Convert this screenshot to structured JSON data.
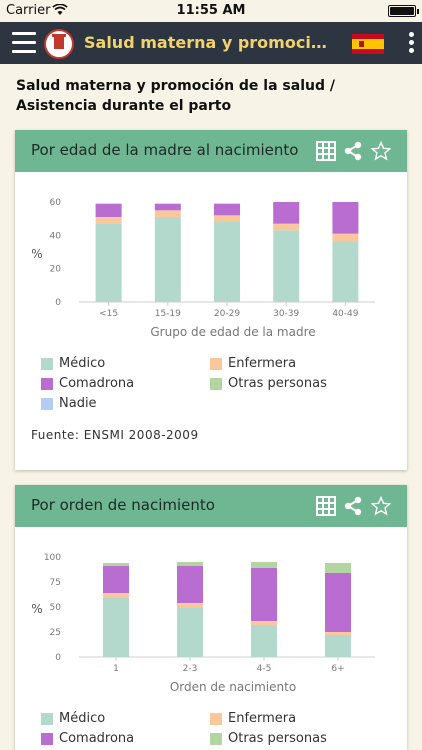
{
  "status_bar": {
    "carrier": "Carrier",
    "time": "11:55 AM"
  },
  "app_bar": {
    "title": "Salud materna y promoción de la salud",
    "language_flag": "spain-flag-icon"
  },
  "page": {
    "heading": "Salud materna y promoción de la salud / Asistencia durante el parto"
  },
  "colors": {
    "medico": "#b3d9cc",
    "enfermera": "#f9c79c",
    "comadrona": "#b96dd1",
    "otras": "#b3d5a2",
    "nadie": "#b5cdf3",
    "header": "#6fb692",
    "appbar": "#2c3540",
    "title_accent": "#f0d36a"
  },
  "legend_labels": {
    "medico": "Médico",
    "enfermera": "Enfermera",
    "comadrona": "Comadrona",
    "otras": "Otras personas",
    "nadie": "Nadie"
  },
  "cards": [
    {
      "title": "Por edad de la madre al nacimiento",
      "source": "Fuente: ENSMI 2008-2009",
      "chart_data": {
        "type": "bar",
        "stacked": true,
        "categories": [
          "<15",
          "15-19",
          "20-29",
          "30-39",
          "40-49"
        ],
        "xlabel": "Grupo de edad de la madre",
        "ylabel": "%",
        "ylim": [
          0,
          60
        ],
        "yticks": [
          0,
          20,
          40,
          60
        ],
        "grid": false,
        "legend_position": "bottom",
        "series": [
          {
            "name": "Médico",
            "key": "medico",
            "values": [
              47,
              51,
              48,
              43,
              36
            ]
          },
          {
            "name": "Enfermera",
            "key": "enfermera",
            "values": [
              4,
              4,
              4,
              4,
              5
            ]
          },
          {
            "name": "Comadrona",
            "key": "comadrona",
            "values": [
              8,
              4,
              7,
              13,
              19
            ]
          },
          {
            "name": "Otras personas",
            "key": "otras",
            "values": [
              0,
              0,
              0,
              0,
              0
            ]
          },
          {
            "name": "Nadie",
            "key": "nadie",
            "values": [
              0,
              0,
              0,
              0,
              0
            ]
          }
        ]
      }
    },
    {
      "title": "Por orden de nacimiento",
      "chart_data": {
        "type": "bar",
        "stacked": true,
        "categories": [
          "1",
          "2-3",
          "4-5",
          "6+"
        ],
        "xlabel": "Orden de nacimiento",
        "ylabel": "%",
        "ylim": [
          0,
          100
        ],
        "yticks": [
          0,
          25,
          50,
          75,
          100
        ],
        "grid": false,
        "legend_position": "bottom",
        "series": [
          {
            "name": "Médico",
            "key": "medico",
            "values": [
              60,
              49,
              32,
              22
            ]
          },
          {
            "name": "Enfermera",
            "key": "enfermera",
            "values": [
              4,
              5,
              4,
              3
            ]
          },
          {
            "name": "Comadrona",
            "key": "comadrona",
            "values": [
              27,
              37,
              53,
              59
            ]
          },
          {
            "name": "Otras personas",
            "key": "otras",
            "values": [
              3,
              4,
              6,
              10
            ]
          },
          {
            "name": "Nadie",
            "key": "nadie",
            "values": [
              0,
              0,
              0,
              0
            ]
          }
        ]
      }
    }
  ]
}
